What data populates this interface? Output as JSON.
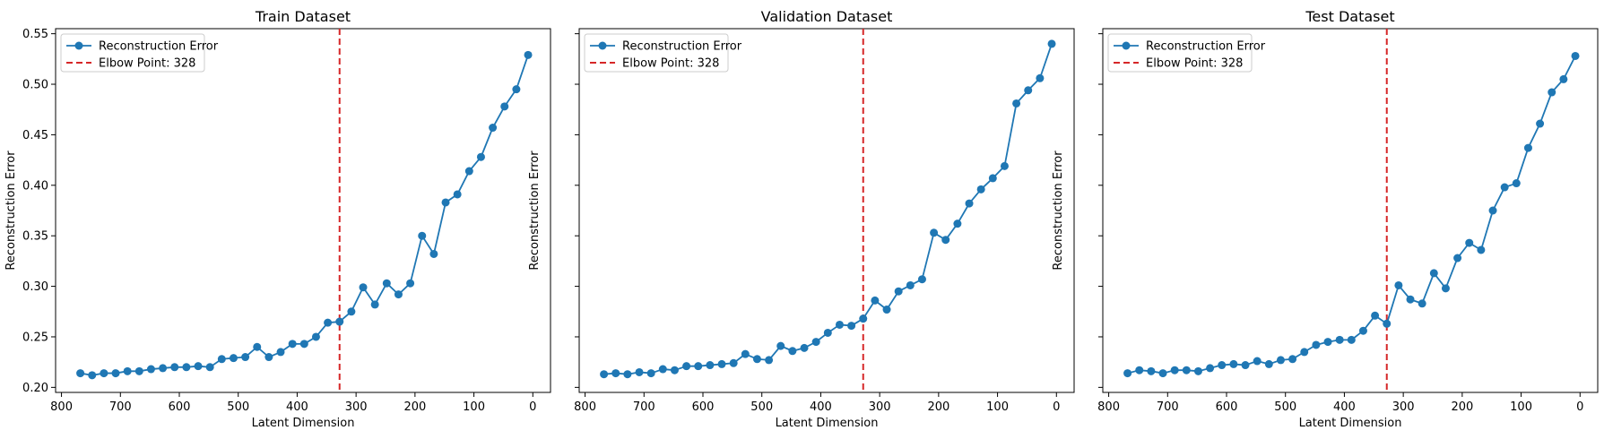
{
  "chart_data": [
    {
      "type": "line",
      "title": "Train Dataset",
      "xlabel": "Latent Dimension",
      "ylabel": "Reconstruction Error",
      "xlim": [
        810,
        -30
      ],
      "ylim": [
        0.195,
        0.555
      ],
      "x_ticks": [
        800,
        700,
        600,
        500,
        400,
        300,
        200,
        100,
        0
      ],
      "y_ticks": [
        0.2,
        0.25,
        0.3,
        0.35,
        0.4,
        0.45,
        0.5,
        0.55
      ],
      "y_tick_labels": [
        "0.20",
        "0.25",
        "0.30",
        "0.35",
        "0.40",
        "0.45",
        "0.50",
        "0.55"
      ],
      "show_y_tick_labels": true,
      "elbow_x": 328,
      "legend": {
        "placement": "top-left",
        "entries": [
          "Reconstruction Error",
          "Elbow Point: 328"
        ]
      },
      "series": [
        {
          "name": "Reconstruction Error",
          "color": "#1f77b4",
          "x": [
            768,
            748,
            728,
            708,
            688,
            668,
            648,
            628,
            608,
            588,
            568,
            548,
            528,
            508,
            488,
            468,
            448,
            428,
            408,
            388,
            368,
            348,
            328,
            308,
            288,
            268,
            248,
            228,
            208,
            188,
            168,
            148,
            128,
            108,
            88,
            68,
            48,
            28,
            8
          ],
          "y": [
            0.214,
            0.212,
            0.214,
            0.214,
            0.216,
            0.216,
            0.218,
            0.219,
            0.22,
            0.22,
            0.221,
            0.22,
            0.228,
            0.229,
            0.23,
            0.24,
            0.23,
            0.235,
            0.243,
            0.243,
            0.25,
            0.264,
            0.265,
            0.275,
            0.299,
            0.282,
            0.303,
            0.292,
            0.303,
            0.35,
            0.332,
            0.383,
            0.391,
            0.414,
            0.428,
            0.457,
            0.478,
            0.495,
            0.529
          ]
        },
        {
          "name": "Elbow Point: 328",
          "color": "#d62728",
          "style": "dashed",
          "x": 328
        }
      ]
    },
    {
      "type": "line",
      "title": "Validation Dataset",
      "xlabel": "Latent Dimension",
      "ylabel": "Reconstruction Error",
      "xlim": [
        810,
        -30
      ],
      "ylim": [
        0.195,
        0.555
      ],
      "x_ticks": [
        800,
        700,
        600,
        500,
        400,
        300,
        200,
        100,
        0
      ],
      "y_ticks": [
        0.2,
        0.25,
        0.3,
        0.35,
        0.4,
        0.45,
        0.5,
        0.55
      ],
      "show_y_tick_labels": false,
      "elbow_x": 328,
      "legend": {
        "placement": "top-left",
        "entries": [
          "Reconstruction Error",
          "Elbow Point: 328"
        ]
      },
      "series": [
        {
          "name": "Reconstruction Error",
          "color": "#1f77b4",
          "x": [
            768,
            748,
            728,
            708,
            688,
            668,
            648,
            628,
            608,
            588,
            568,
            548,
            528,
            508,
            488,
            468,
            448,
            428,
            408,
            388,
            368,
            348,
            328,
            308,
            288,
            268,
            248,
            228,
            208,
            188,
            168,
            148,
            128,
            108,
            88,
            68,
            48,
            28,
            8
          ],
          "y": [
            0.213,
            0.214,
            0.213,
            0.215,
            0.214,
            0.218,
            0.217,
            0.221,
            0.221,
            0.222,
            0.223,
            0.224,
            0.233,
            0.228,
            0.227,
            0.241,
            0.236,
            0.239,
            0.245,
            0.254,
            0.262,
            0.261,
            0.268,
            0.286,
            0.277,
            0.295,
            0.301,
            0.307,
            0.353,
            0.346,
            0.362,
            0.382,
            0.396,
            0.407,
            0.419,
            0.481,
            0.494,
            0.506,
            0.54
          ]
        },
        {
          "name": "Elbow Point: 328",
          "color": "#d62728",
          "style": "dashed",
          "x": 328
        }
      ]
    },
    {
      "type": "line",
      "title": "Test Dataset",
      "xlabel": "Latent Dimension",
      "ylabel": "Reconstruction Error",
      "xlim": [
        810,
        -30
      ],
      "ylim": [
        0.195,
        0.555
      ],
      "x_ticks": [
        800,
        700,
        600,
        500,
        400,
        300,
        200,
        100,
        0
      ],
      "y_ticks": [
        0.2,
        0.25,
        0.3,
        0.35,
        0.4,
        0.45,
        0.5,
        0.55
      ],
      "show_y_tick_labels": false,
      "elbow_x": 328,
      "legend": {
        "placement": "top-left",
        "entries": [
          "Reconstruction Error",
          "Elbow Point: 328"
        ]
      },
      "series": [
        {
          "name": "Reconstruction Error",
          "color": "#1f77b4",
          "x": [
            768,
            748,
            728,
            708,
            688,
            668,
            648,
            628,
            608,
            588,
            568,
            548,
            528,
            508,
            488,
            468,
            448,
            428,
            408,
            388,
            368,
            348,
            328,
            308,
            288,
            268,
            248,
            228,
            208,
            188,
            168,
            148,
            128,
            108,
            88,
            68,
            48,
            28,
            8
          ],
          "y": [
            0.214,
            0.217,
            0.216,
            0.214,
            0.217,
            0.217,
            0.216,
            0.219,
            0.222,
            0.223,
            0.222,
            0.226,
            0.223,
            0.227,
            0.228,
            0.235,
            0.242,
            0.245,
            0.247,
            0.247,
            0.256,
            0.271,
            0.263,
            0.301,
            0.287,
            0.283,
            0.313,
            0.298,
            0.328,
            0.343,
            0.336,
            0.375,
            0.398,
            0.402,
            0.437,
            0.461,
            0.492,
            0.505,
            0.528
          ]
        },
        {
          "name": "Elbow Point: 328",
          "color": "#d62728",
          "style": "dashed",
          "x": 328
        }
      ]
    }
  ]
}
